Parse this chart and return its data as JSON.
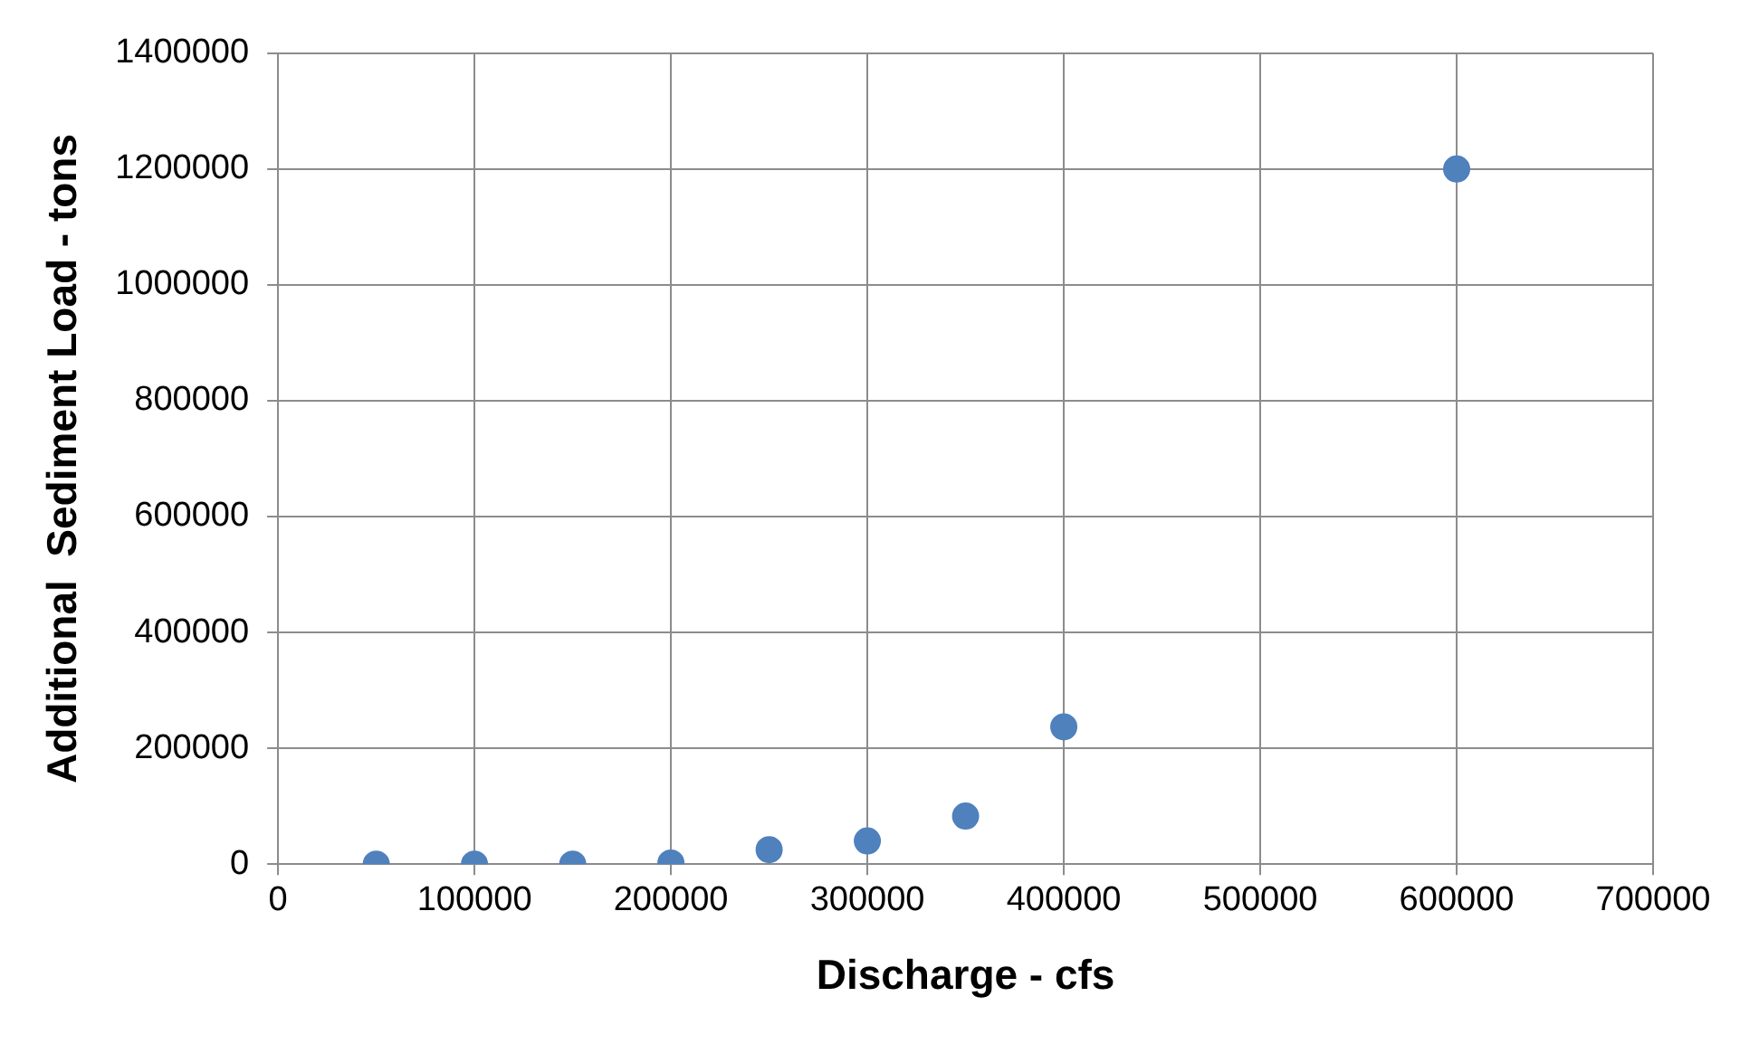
{
  "chart_data": {
    "type": "scatter",
    "xlabel": "Discharge - cfs",
    "ylabel": "Additional  Sediment Load - tons",
    "x": [
      50000,
      100000,
      150000,
      200000,
      250000,
      300000,
      350000,
      400000,
      600000
    ],
    "series": [
      {
        "color": "#4f81bd",
        "values": [
          0,
          0,
          0,
          2000,
          25000,
          40000,
          83000,
          237000,
          1200000
        ]
      }
    ],
    "xlim": [
      0,
      700000
    ],
    "xticks": [
      0,
      100000,
      200000,
      300000,
      400000,
      500000,
      600000,
      700000
    ],
    "ylim": [
      0,
      1400000
    ],
    "yticks": [
      0,
      200000,
      400000,
      600000,
      800000,
      1000000,
      1200000,
      1400000
    ],
    "grid": true,
    "legend": false,
    "marker": "circle"
  }
}
